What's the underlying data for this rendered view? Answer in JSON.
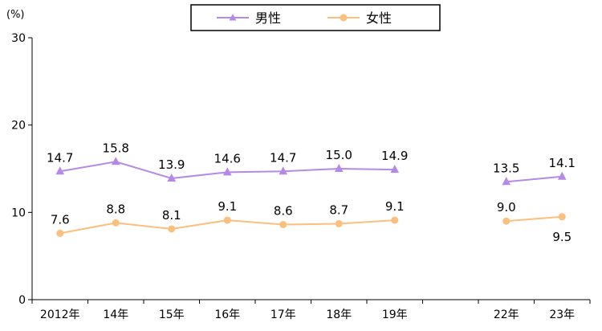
{
  "chart_data": {
    "type": "line",
    "unit_label": "(%)",
    "categories": [
      "2012年",
      "14年",
      "15年",
      "16年",
      "17年",
      "18年",
      "19年",
      "",
      "22年",
      "23年"
    ],
    "y_ticks": [
      "0",
      "10",
      "20",
      "30"
    ],
    "ylim": [
      0,
      30
    ],
    "grid": false,
    "legend_position": "top",
    "series": [
      {
        "name": "男性",
        "color": "#b48ae8",
        "marker": "triangle",
        "values": [
          14.7,
          15.8,
          13.9,
          14.6,
          14.7,
          15.0,
          14.9,
          null,
          13.5,
          14.1
        ],
        "labels": [
          "14.7",
          "15.8",
          "13.9",
          "14.6",
          "14.7",
          "15.0",
          "14.9",
          "",
          "13.5",
          "14.1"
        ]
      },
      {
        "name": "女性",
        "color": "#fbbf7e",
        "marker": "circle",
        "values": [
          7.6,
          8.8,
          8.1,
          9.1,
          8.6,
          8.7,
          9.1,
          null,
          9.0,
          9.5
        ],
        "labels": [
          "7.6",
          "8.8",
          "8.1",
          "9.1",
          "8.6",
          "8.7",
          "9.1",
          "",
          "9.0",
          "9.5"
        ]
      }
    ]
  }
}
